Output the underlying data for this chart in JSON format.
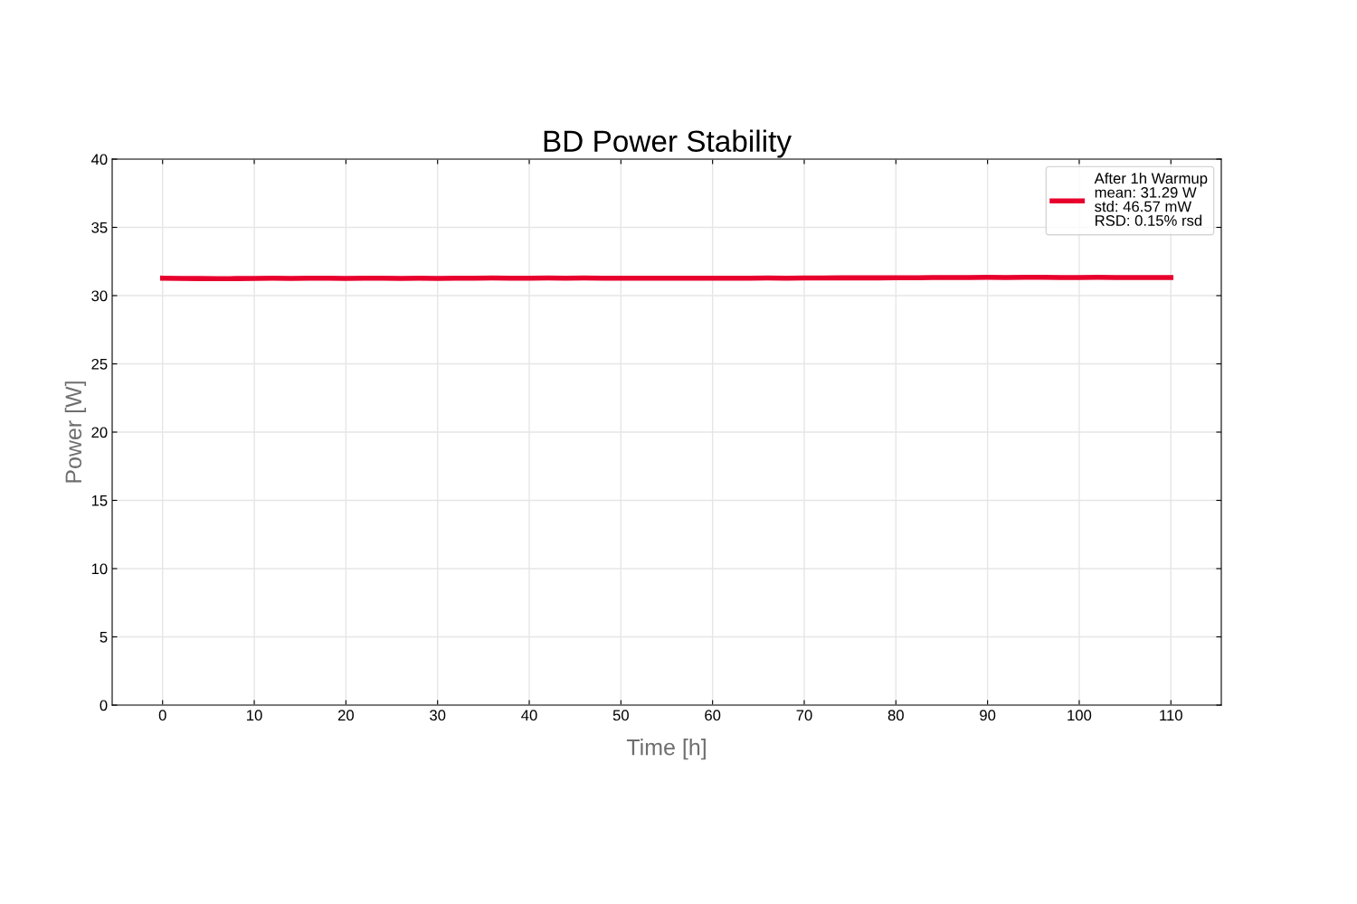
{
  "chart_data": {
    "type": "line",
    "title": "BD Power Stability",
    "xlabel": "Time [h]",
    "ylabel": "Power [W]",
    "series": [
      {
        "name": "After 1h Warmup\nmean: 31.29 W\nstd: 46.57 mW\nRSD: 0.15% rsd",
        "color": "#e8002d",
        "x": [
          0,
          2,
          4,
          6,
          8,
          10,
          12,
          14,
          16,
          18,
          20,
          22,
          24,
          26,
          28,
          30,
          32,
          34,
          36,
          38,
          40,
          42,
          44,
          46,
          48,
          50,
          52,
          54,
          56,
          58,
          60,
          62,
          64,
          66,
          68,
          70,
          72,
          74,
          76,
          78,
          80,
          82,
          84,
          86,
          88,
          90,
          92,
          94,
          96,
          98,
          100,
          102,
          104,
          106,
          108,
          110
        ],
        "values": [
          31.28,
          31.26,
          31.25,
          31.24,
          31.25,
          31.26,
          31.27,
          31.26,
          31.27,
          31.27,
          31.26,
          31.27,
          31.27,
          31.26,
          31.27,
          31.26,
          31.27,
          31.28,
          31.29,
          31.28,
          31.28,
          31.29,
          31.28,
          31.29,
          31.28,
          31.28,
          31.27,
          31.28,
          31.28,
          31.27,
          31.27,
          31.27,
          31.28,
          31.29,
          31.28,
          31.29,
          31.29,
          31.3,
          31.3,
          31.3,
          31.31,
          31.31,
          31.32,
          31.33,
          31.33,
          31.34,
          31.33,
          31.34,
          31.34,
          31.33,
          31.33,
          31.34,
          31.33,
          31.32,
          31.33,
          31.32
        ]
      }
    ],
    "xlim": [
      -5.5,
      115.5
    ],
    "ylim": [
      0,
      40
    ],
    "xticks": [
      0,
      10,
      20,
      30,
      40,
      50,
      60,
      70,
      80,
      90,
      100,
      110
    ],
    "yticks": [
      0,
      5,
      10,
      15,
      20,
      25,
      30,
      35,
      40
    ],
    "grid": true,
    "legend": "top right"
  }
}
